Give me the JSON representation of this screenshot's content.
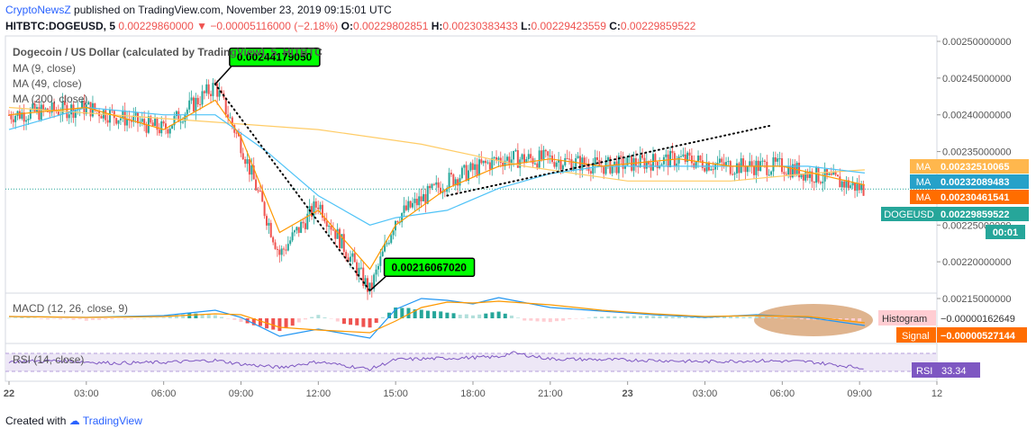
{
  "header": {
    "brand": "CryptoNewsZ",
    "published_text": " published on TradingView.com, November 23, 2019 09:15:01 UTC",
    "symbol_line": "HITBTC:DOGEUSD, 5",
    "price": "0.00229860000",
    "change": "−0.00005116000 (−2.18%)",
    "o_label": "O:",
    "o_value": "0.00229802851",
    "h_label": "H:",
    "h_value": "0.00230383433",
    "l_label": "L:",
    "l_value": "0.00229423559",
    "c_label": "C:",
    "c_value": "0.00229859522"
  },
  "footer": {
    "created": "Created with",
    "tradingview": "TradingView"
  },
  "colors": {
    "bull": "#26a69a",
    "bear": "#ef5350",
    "ma9": "#ff9800",
    "ma49": "#4fc3f7",
    "ma200": "#ffcc66",
    "macd": "#2196f3",
    "signal": "#ff9800",
    "rsi": "#7e57c2",
    "label_green": "#00ff00",
    "ellipse": "#d9a77a",
    "price_line": "#26a69a"
  },
  "chart_data": {
    "type": "candlestick",
    "title": "Dogecoin / US Dollar (calculated by TradingView), 5, HITBTC",
    "legend": [
      "MA (9, close)",
      "MA (49, close)",
      "MA (200, close)"
    ],
    "y_ticks": [
      "0.00250000000",
      "0.00245000000",
      "0.00240000000",
      "0.00235000000",
      "0.00225000000",
      "0.00220000000",
      "0.00215000000"
    ],
    "ylim": [
      0.00215,
      0.0025
    ],
    "x_ticks": [
      "22",
      "03:00",
      "06:00",
      "09:00",
      "12:00",
      "15:00",
      "18:00",
      "21:00",
      "23",
      "03:00",
      "06:00",
      "09:00",
      "12"
    ],
    "price_path": [
      [
        0,
        0.0024
      ],
      [
        3,
        0.00241
      ],
      [
        6,
        0.00238
      ],
      [
        8,
        0.00244
      ],
      [
        9,
        0.00236
      ],
      [
        10.5,
        0.00221
      ],
      [
        12,
        0.00228
      ],
      [
        14,
        0.00216
      ],
      [
        15,
        0.00226
      ],
      [
        17,
        0.00231
      ],
      [
        19,
        0.00234
      ],
      [
        21,
        0.00234
      ],
      [
        23,
        0.00233
      ],
      [
        26,
        0.00234
      ],
      [
        28,
        0.00233
      ],
      [
        30,
        0.00233
      ],
      [
        33.2,
        0.002299
      ]
    ],
    "ma9_path": [
      [
        0,
        0.0024
      ],
      [
        3,
        0.00241
      ],
      [
        6,
        0.00238
      ],
      [
        8,
        0.00242
      ],
      [
        9,
        0.00237
      ],
      [
        10.5,
        0.00224
      ],
      [
        12,
        0.00227
      ],
      [
        14,
        0.00219
      ],
      [
        15,
        0.00225
      ],
      [
        17,
        0.0023
      ],
      [
        19,
        0.00233
      ],
      [
        21,
        0.00234
      ],
      [
        23,
        0.00233
      ],
      [
        26,
        0.00234
      ],
      [
        28,
        0.00233
      ],
      [
        30,
        0.00233
      ],
      [
        33.2,
        0.0023046
      ]
    ],
    "ma49_path": [
      [
        0,
        0.00238
      ],
      [
        3,
        0.00241
      ],
      [
        6,
        0.0024
      ],
      [
        8,
        0.0024
      ],
      [
        10,
        0.00235
      ],
      [
        12,
        0.00229
      ],
      [
        14,
        0.00225
      ],
      [
        15,
        0.00226
      ],
      [
        17,
        0.00227
      ],
      [
        19,
        0.0023
      ],
      [
        21,
        0.00232
      ],
      [
        23,
        0.00233
      ],
      [
        26,
        0.00233
      ],
      [
        28,
        0.00233
      ],
      [
        31,
        0.00233
      ],
      [
        33.2,
        0.0023209
      ]
    ],
    "ma200_path": [
      [
        0,
        0.00241
      ],
      [
        4,
        0.0024
      ],
      [
        8,
        0.00239
      ],
      [
        12,
        0.00238
      ],
      [
        16,
        0.00236
      ],
      [
        20,
        0.00233
      ],
      [
        24,
        0.00231
      ],
      [
        28,
        0.00231
      ],
      [
        31,
        0.00232
      ],
      [
        33.2,
        0.0023251
      ]
    ],
    "annotations": [
      {
        "text": "0.00244179050",
        "x": 8,
        "y": 0.00244179
      },
      {
        "text": "0.00216067020",
        "x": 14,
        "y": 0.00216067
      }
    ],
    "trend_lines": [
      {
        "from": [
          8,
          0.00244179
        ],
        "to": [
          14,
          0.00216067
        ]
      },
      {
        "from": [
          17,
          0.00229
        ],
        "to": [
          29.5,
          0.002385
        ]
      }
    ],
    "price_tags": [
      {
        "label": "MA",
        "value": "0.00232510065",
        "color": "#ffb74d"
      },
      {
        "label": "MA",
        "value": "0.00232089483",
        "color": "#26a1c9"
      },
      {
        "label": "MA",
        "value": "0.00230461541",
        "color": "#ff6d00"
      },
      {
        "label": "DOGEUSD",
        "value": "0.00229859522",
        "color": "#26a69a"
      }
    ],
    "countdown": "00:01",
    "macd": {
      "label": "MACD (12, 26, close, 9)",
      "histogram_label": "Histogram",
      "histogram_value": "−0.00000162649",
      "signal_label": "Signal",
      "signal_value": "−0.00000527144",
      "histogram_path": [
        [
          0,
          0.1
        ],
        [
          3,
          -0.2
        ],
        [
          6,
          0.1
        ],
        [
          7,
          0.6
        ],
        [
          8,
          0.4
        ],
        [
          9,
          -0.4
        ],
        [
          10.5,
          -1.4
        ],
        [
          12,
          0.4
        ],
        [
          13,
          -0.6
        ],
        [
          14,
          -1.0
        ],
        [
          15,
          1.2
        ],
        [
          16,
          1.0
        ],
        [
          17,
          0.6
        ],
        [
          18,
          0.3
        ],
        [
          19,
          0.8
        ],
        [
          20,
          -0.2
        ],
        [
          21,
          -0.4
        ],
        [
          23,
          0.2
        ],
        [
          25,
          0.3
        ],
        [
          27,
          0.1
        ],
        [
          29,
          0.2
        ],
        [
          31,
          -0.1
        ],
        [
          33.2,
          -0.3
        ]
      ],
      "macd_path": [
        [
          0,
          0.2
        ],
        [
          3,
          0.1
        ],
        [
          6,
          0.3
        ],
        [
          8,
          0.9
        ],
        [
          9,
          0.1
        ],
        [
          10.5,
          -2.0
        ],
        [
          12,
          -1.2
        ],
        [
          14,
          -2.2
        ],
        [
          15,
          1.0
        ],
        [
          16,
          2.2
        ],
        [
          17,
          2.0
        ],
        [
          18,
          1.6
        ],
        [
          19,
          2.3
        ],
        [
          21,
          1.2
        ],
        [
          23,
          0.8
        ],
        [
          25,
          0.4
        ],
        [
          27,
          0.1
        ],
        [
          29,
          0.4
        ],
        [
          31,
          0.1
        ],
        [
          33.2,
          -0.8
        ]
      ],
      "signal_path": [
        [
          0,
          0.2
        ],
        [
          3,
          0.1
        ],
        [
          6,
          0.2
        ],
        [
          8,
          0.5
        ],
        [
          9,
          0.4
        ],
        [
          10.5,
          -1.0
        ],
        [
          12,
          -1.3
        ],
        [
          14,
          -1.6
        ],
        [
          15,
          -0.3
        ],
        [
          16,
          1.2
        ],
        [
          17,
          1.8
        ],
        [
          18,
          1.7
        ],
        [
          19,
          1.9
        ],
        [
          21,
          1.5
        ],
        [
          23,
          0.9
        ],
        [
          25,
          0.5
        ],
        [
          27,
          0.2
        ],
        [
          29,
          0.3
        ],
        [
          31,
          0.2
        ],
        [
          33.2,
          -0.5
        ]
      ]
    },
    "rsi": {
      "label": "RSI (14, close)",
      "value": "33.34",
      "band": [
        30,
        70
      ],
      "path": [
        [
          0,
          52
        ],
        [
          2,
          55
        ],
        [
          4,
          48
        ],
        [
          6,
          50
        ],
        [
          8,
          56
        ],
        [
          9,
          45
        ],
        [
          10.5,
          35
        ],
        [
          12,
          52
        ],
        [
          14,
          30
        ],
        [
          15,
          58
        ],
        [
          17,
          62
        ],
        [
          19,
          66
        ],
        [
          19.5,
          78
        ],
        [
          21,
          60
        ],
        [
          23,
          58
        ],
        [
          25,
          56
        ],
        [
          27,
          52
        ],
        [
          29,
          55
        ],
        [
          31,
          52
        ],
        [
          33.2,
          33
        ]
      ]
    }
  }
}
